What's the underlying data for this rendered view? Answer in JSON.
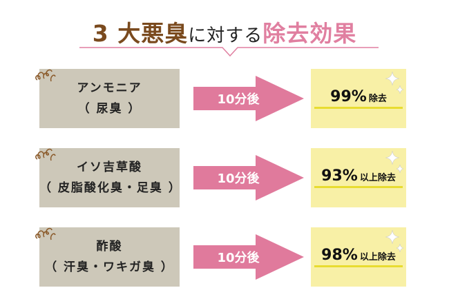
{
  "title": {
    "part1": "3 大悪臭",
    "part2": "に対する",
    "part3": "除去効果"
  },
  "colors": {
    "brown": "#7a4a1e",
    "pink": "#e07fa0",
    "gray_box": "#cdc8b9",
    "yellow_box": "#f8f0a6"
  },
  "rows": [
    {
      "name": "アンモニア",
      "sub": "（ 尿臭 ）",
      "arrow": "10分後",
      "percent": "99%",
      "suffix": "除去"
    },
    {
      "name": "イソ吉草酸",
      "sub": "（ 皮脂酸化臭・足臭 ）",
      "arrow": "10分後",
      "percent": "93%",
      "suffix": "以上除去"
    },
    {
      "name": "酢酸",
      "sub": "（ 汗臭・ワキガ臭 ）",
      "arrow": "10分後",
      "percent": "98%",
      "suffix": "以上除去"
    }
  ]
}
